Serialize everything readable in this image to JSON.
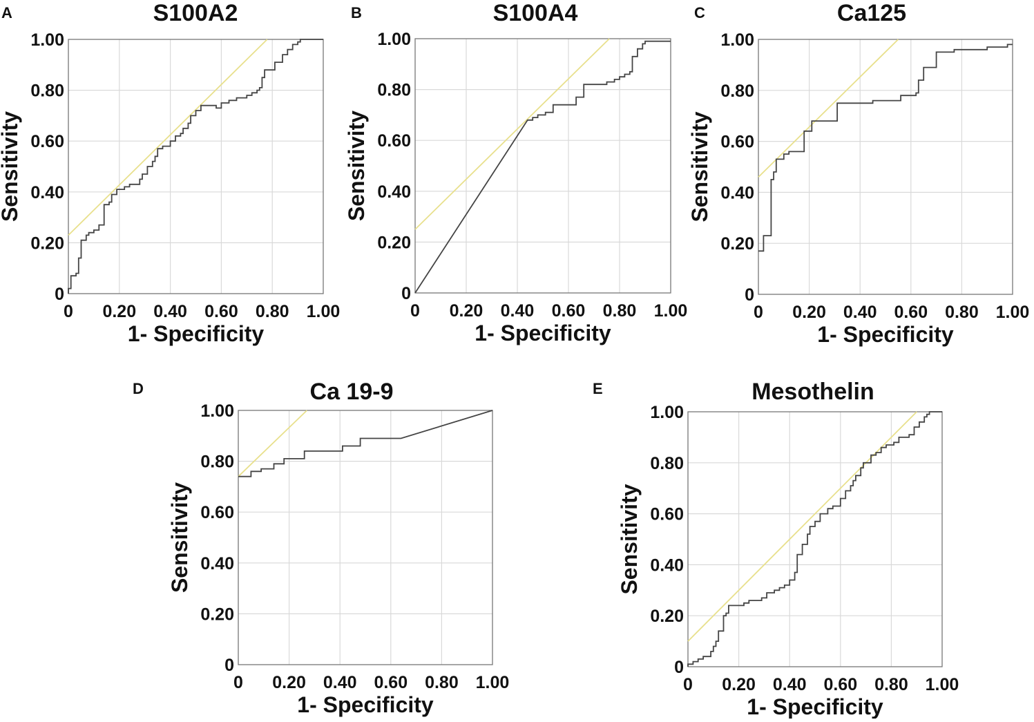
{
  "chart_data": [
    {
      "type": "line",
      "panel": "A",
      "title": "S100A2",
      "xlabel": "1- Specificity",
      "ylabel": "Sensitivity",
      "xlim": [
        0,
        1
      ],
      "ylim": [
        0,
        1
      ],
      "xticks": [
        "0",
        "0.20",
        "0.40",
        "0.60",
        "0.80",
        "1.00"
      ],
      "yticks": [
        "0",
        "0.20",
        "0.40",
        "0.60",
        "0.80",
        "1.00"
      ],
      "roc": [
        [
          0,
          0
        ],
        [
          0,
          0.02
        ],
        [
          0.01,
          0.02
        ],
        [
          0.01,
          0.07
        ],
        [
          0.03,
          0.07
        ],
        [
          0.03,
          0.08
        ],
        [
          0.04,
          0.08
        ],
        [
          0.04,
          0.14
        ],
        [
          0.05,
          0.14
        ],
        [
          0.05,
          0.21
        ],
        [
          0.07,
          0.21
        ],
        [
          0.07,
          0.23
        ],
        [
          0.08,
          0.23
        ],
        [
          0.08,
          0.24
        ],
        [
          0.1,
          0.24
        ],
        [
          0.1,
          0.25
        ],
        [
          0.12,
          0.25
        ],
        [
          0.12,
          0.27
        ],
        [
          0.14,
          0.27
        ],
        [
          0.14,
          0.35
        ],
        [
          0.16,
          0.35
        ],
        [
          0.16,
          0.36
        ],
        [
          0.17,
          0.36
        ],
        [
          0.17,
          0.39
        ],
        [
          0.19,
          0.39
        ],
        [
          0.19,
          0.41
        ],
        [
          0.22,
          0.41
        ],
        [
          0.22,
          0.42
        ],
        [
          0.24,
          0.42
        ],
        [
          0.24,
          0.43
        ],
        [
          0.28,
          0.43
        ],
        [
          0.28,
          0.45
        ],
        [
          0.29,
          0.45
        ],
        [
          0.29,
          0.47
        ],
        [
          0.31,
          0.47
        ],
        [
          0.31,
          0.5
        ],
        [
          0.33,
          0.5
        ],
        [
          0.33,
          0.52
        ],
        [
          0.34,
          0.52
        ],
        [
          0.34,
          0.54
        ],
        [
          0.35,
          0.54
        ],
        [
          0.35,
          0.57
        ],
        [
          0.37,
          0.57
        ],
        [
          0.37,
          0.58
        ],
        [
          0.4,
          0.58
        ],
        [
          0.4,
          0.6
        ],
        [
          0.42,
          0.6
        ],
        [
          0.42,
          0.62
        ],
        [
          0.44,
          0.62
        ],
        [
          0.44,
          0.63
        ],
        [
          0.45,
          0.63
        ],
        [
          0.45,
          0.65
        ],
        [
          0.47,
          0.65
        ],
        [
          0.47,
          0.67
        ],
        [
          0.48,
          0.67
        ],
        [
          0.48,
          0.7
        ],
        [
          0.5,
          0.7
        ],
        [
          0.5,
          0.72
        ],
        [
          0.52,
          0.72
        ],
        [
          0.52,
          0.74
        ],
        [
          0.58,
          0.74
        ],
        [
          0.58,
          0.73
        ],
        [
          0.6,
          0.73
        ],
        [
          0.6,
          0.75
        ],
        [
          0.63,
          0.75
        ],
        [
          0.63,
          0.76
        ],
        [
          0.66,
          0.76
        ],
        [
          0.66,
          0.77
        ],
        [
          0.7,
          0.77
        ],
        [
          0.7,
          0.78
        ],
        [
          0.72,
          0.78
        ],
        [
          0.72,
          0.79
        ],
        [
          0.74,
          0.79
        ],
        [
          0.74,
          0.8
        ],
        [
          0.75,
          0.8
        ],
        [
          0.75,
          0.81
        ],
        [
          0.76,
          0.81
        ],
        [
          0.76,
          0.85
        ],
        [
          0.77,
          0.85
        ],
        [
          0.77,
          0.88
        ],
        [
          0.81,
          0.88
        ],
        [
          0.81,
          0.91
        ],
        [
          0.84,
          0.91
        ],
        [
          0.84,
          0.94
        ],
        [
          0.86,
          0.94
        ],
        [
          0.86,
          0.96
        ],
        [
          0.88,
          0.96
        ],
        [
          0.88,
          0.98
        ],
        [
          0.9,
          0.98
        ],
        [
          0.9,
          0.99
        ],
        [
          0.91,
          0.99
        ],
        [
          0.91,
          1.0
        ],
        [
          1.0,
          1.0
        ]
      ],
      "reference_line": [
        [
          0,
          0.23
        ],
        [
          0.78,
          1.0
        ]
      ]
    },
    {
      "type": "line",
      "panel": "B",
      "title": "S100A4",
      "xlabel": "1- Specificity",
      "ylabel": "Sensitivity",
      "xlim": [
        0,
        1
      ],
      "ylim": [
        0,
        1
      ],
      "xticks": [
        "0",
        "0.20",
        "0.40",
        "0.60",
        "0.80",
        "1.00"
      ],
      "yticks": [
        "0",
        "0.20",
        "0.40",
        "0.60",
        "0.80",
        "1.00"
      ],
      "roc": [
        [
          0,
          0
        ],
        [
          0.44,
          0.68
        ],
        [
          0.46,
          0.68
        ],
        [
          0.46,
          0.69
        ],
        [
          0.48,
          0.69
        ],
        [
          0.48,
          0.7
        ],
        [
          0.51,
          0.7
        ],
        [
          0.51,
          0.71
        ],
        [
          0.54,
          0.71
        ],
        [
          0.54,
          0.74
        ],
        [
          0.63,
          0.74
        ],
        [
          0.63,
          0.77
        ],
        [
          0.66,
          0.77
        ],
        [
          0.66,
          0.82
        ],
        [
          0.75,
          0.82
        ],
        [
          0.75,
          0.83
        ],
        [
          0.78,
          0.83
        ],
        [
          0.78,
          0.84
        ],
        [
          0.8,
          0.84
        ],
        [
          0.8,
          0.85
        ],
        [
          0.82,
          0.85
        ],
        [
          0.82,
          0.86
        ],
        [
          0.84,
          0.86
        ],
        [
          0.84,
          0.87
        ],
        [
          0.85,
          0.87
        ],
        [
          0.85,
          0.93
        ],
        [
          0.87,
          0.93
        ],
        [
          0.87,
          0.96
        ],
        [
          0.89,
          0.96
        ],
        [
          0.89,
          0.98
        ],
        [
          0.9,
          0.98
        ],
        [
          0.9,
          0.99
        ],
        [
          1.0,
          0.99
        ]
      ],
      "reference_line": [
        [
          0,
          0.25
        ],
        [
          0.76,
          1.0
        ]
      ]
    },
    {
      "type": "line",
      "panel": "C",
      "title": "Ca125",
      "xlabel": "1- Specificity",
      "ylabel": "Sensitivity",
      "xlim": [
        0,
        1
      ],
      "ylim": [
        0,
        1
      ],
      "xticks": [
        "0",
        "0.20",
        "0.40",
        "0.60",
        "0.80",
        "1.00"
      ],
      "yticks": [
        "0",
        "0.20",
        "0.40",
        "0.60",
        "0.80",
        "1.00"
      ],
      "roc": [
        [
          0,
          0.17
        ],
        [
          0.02,
          0.17
        ],
        [
          0.02,
          0.23
        ],
        [
          0.05,
          0.23
        ],
        [
          0.05,
          0.45
        ],
        [
          0.06,
          0.45
        ],
        [
          0.06,
          0.48
        ],
        [
          0.07,
          0.48
        ],
        [
          0.07,
          0.53
        ],
        [
          0.1,
          0.53
        ],
        [
          0.1,
          0.55
        ],
        [
          0.12,
          0.55
        ],
        [
          0.12,
          0.56
        ],
        [
          0.18,
          0.56
        ],
        [
          0.18,
          0.64
        ],
        [
          0.21,
          0.64
        ],
        [
          0.21,
          0.68
        ],
        [
          0.25,
          0.68
        ],
        [
          0.25,
          0.68
        ],
        [
          0.31,
          0.68
        ],
        [
          0.31,
          0.75
        ],
        [
          0.45,
          0.75
        ],
        [
          0.45,
          0.76
        ],
        [
          0.55,
          0.76
        ],
        [
          0.55,
          0.76
        ],
        [
          0.56,
          0.76
        ],
        [
          0.56,
          0.78
        ],
        [
          0.62,
          0.78
        ],
        [
          0.62,
          0.79
        ],
        [
          0.63,
          0.79
        ],
        [
          0.63,
          0.84
        ],
        [
          0.65,
          0.84
        ],
        [
          0.65,
          0.89
        ],
        [
          0.7,
          0.89
        ],
        [
          0.7,
          0.95
        ],
        [
          0.77,
          0.95
        ],
        [
          0.77,
          0.96
        ],
        [
          0.9,
          0.96
        ],
        [
          0.9,
          0.97
        ],
        [
          0.98,
          0.97
        ],
        [
          0.98,
          0.98
        ],
        [
          1.0,
          0.98
        ]
      ],
      "reference_line": [
        [
          0,
          0.46
        ],
        [
          0.55,
          1.0
        ]
      ]
    },
    {
      "type": "line",
      "panel": "D",
      "title": "Ca 19-9",
      "xlabel": "1- Specificity",
      "ylabel": "Sensitivity",
      "xlim": [
        0,
        1
      ],
      "ylim": [
        0,
        1
      ],
      "xticks": [
        "0",
        "0.20",
        "0.40",
        "0.60",
        "0.80",
        "1.00"
      ],
      "yticks": [
        "0",
        "0.20",
        "0.40",
        "0.60",
        "0.80",
        "1.00"
      ],
      "roc": [
        [
          0,
          0.74
        ],
        [
          0.05,
          0.74
        ],
        [
          0.05,
          0.76
        ],
        [
          0.09,
          0.76
        ],
        [
          0.09,
          0.77
        ],
        [
          0.14,
          0.77
        ],
        [
          0.14,
          0.79
        ],
        [
          0.18,
          0.79
        ],
        [
          0.18,
          0.81
        ],
        [
          0.26,
          0.81
        ],
        [
          0.26,
          0.84
        ],
        [
          0.41,
          0.84
        ],
        [
          0.41,
          0.86
        ],
        [
          0.48,
          0.86
        ],
        [
          0.48,
          0.89
        ],
        [
          0.64,
          0.89
        ],
        [
          1.0,
          1.0
        ]
      ],
      "reference_line": [
        [
          0,
          0.74
        ],
        [
          0.27,
          1.0
        ]
      ]
    },
    {
      "type": "line",
      "panel": "E",
      "title": "Mesothelin",
      "xlabel": "1- Specificity",
      "ylabel": "Sensitivity",
      "xlim": [
        0,
        1
      ],
      "ylim": [
        0,
        1
      ],
      "xticks": [
        "0",
        "0.20",
        "0.40",
        "0.60",
        "0.80",
        "1.00"
      ],
      "yticks": [
        "0",
        "0.20",
        "0.40",
        "0.60",
        "0.80",
        "1.00"
      ],
      "roc": [
        [
          0,
          0
        ],
        [
          0,
          0.01
        ],
        [
          0.02,
          0.01
        ],
        [
          0.02,
          0.02
        ],
        [
          0.04,
          0.02
        ],
        [
          0.04,
          0.03
        ],
        [
          0.06,
          0.03
        ],
        [
          0.06,
          0.04
        ],
        [
          0.09,
          0.04
        ],
        [
          0.09,
          0.06
        ],
        [
          0.1,
          0.06
        ],
        [
          0.1,
          0.08
        ],
        [
          0.11,
          0.08
        ],
        [
          0.11,
          0.1
        ],
        [
          0.12,
          0.1
        ],
        [
          0.12,
          0.14
        ],
        [
          0.14,
          0.14
        ],
        [
          0.14,
          0.2
        ],
        [
          0.15,
          0.2
        ],
        [
          0.15,
          0.21
        ],
        [
          0.16,
          0.21
        ],
        [
          0.16,
          0.24
        ],
        [
          0.22,
          0.24
        ],
        [
          0.22,
          0.25
        ],
        [
          0.24,
          0.25
        ],
        [
          0.24,
          0.26
        ],
        [
          0.29,
          0.26
        ],
        [
          0.29,
          0.27
        ],
        [
          0.31,
          0.27
        ],
        [
          0.31,
          0.29
        ],
        [
          0.34,
          0.29
        ],
        [
          0.34,
          0.3
        ],
        [
          0.36,
          0.3
        ],
        [
          0.36,
          0.31
        ],
        [
          0.38,
          0.31
        ],
        [
          0.38,
          0.32
        ],
        [
          0.4,
          0.32
        ],
        [
          0.4,
          0.34
        ],
        [
          0.42,
          0.34
        ],
        [
          0.42,
          0.37
        ],
        [
          0.43,
          0.37
        ],
        [
          0.43,
          0.44
        ],
        [
          0.45,
          0.44
        ],
        [
          0.45,
          0.48
        ],
        [
          0.47,
          0.48
        ],
        [
          0.47,
          0.52
        ],
        [
          0.48,
          0.52
        ],
        [
          0.48,
          0.55
        ],
        [
          0.5,
          0.55
        ],
        [
          0.5,
          0.57
        ],
        [
          0.52,
          0.57
        ],
        [
          0.52,
          0.6
        ],
        [
          0.55,
          0.6
        ],
        [
          0.55,
          0.62
        ],
        [
          0.57,
          0.62
        ],
        [
          0.57,
          0.63
        ],
        [
          0.6,
          0.63
        ],
        [
          0.6,
          0.66
        ],
        [
          0.62,
          0.66
        ],
        [
          0.62,
          0.69
        ],
        [
          0.64,
          0.69
        ],
        [
          0.64,
          0.71
        ],
        [
          0.65,
          0.71
        ],
        [
          0.65,
          0.73
        ],
        [
          0.66,
          0.73
        ],
        [
          0.66,
          0.75
        ],
        [
          0.68,
          0.75
        ],
        [
          0.68,
          0.78
        ],
        [
          0.69,
          0.78
        ],
        [
          0.69,
          0.8
        ],
        [
          0.72,
          0.8
        ],
        [
          0.72,
          0.83
        ],
        [
          0.74,
          0.83
        ],
        [
          0.74,
          0.84
        ],
        [
          0.76,
          0.84
        ],
        [
          0.76,
          0.86
        ],
        [
          0.78,
          0.86
        ],
        [
          0.78,
          0.87
        ],
        [
          0.81,
          0.87
        ],
        [
          0.81,
          0.88
        ],
        [
          0.83,
          0.88
        ],
        [
          0.83,
          0.9
        ],
        [
          0.87,
          0.9
        ],
        [
          0.87,
          0.91
        ],
        [
          0.89,
          0.91
        ],
        [
          0.89,
          0.94
        ],
        [
          0.91,
          0.94
        ],
        [
          0.91,
          0.96
        ],
        [
          0.93,
          0.96
        ],
        [
          0.93,
          0.98
        ],
        [
          0.94,
          0.98
        ],
        [
          0.94,
          0.99
        ],
        [
          0.95,
          0.99
        ],
        [
          0.95,
          1.0
        ],
        [
          1.0,
          1.0
        ]
      ],
      "reference_line": [
        [
          0,
          0.1
        ],
        [
          0.9,
          1.0
        ]
      ]
    }
  ]
}
